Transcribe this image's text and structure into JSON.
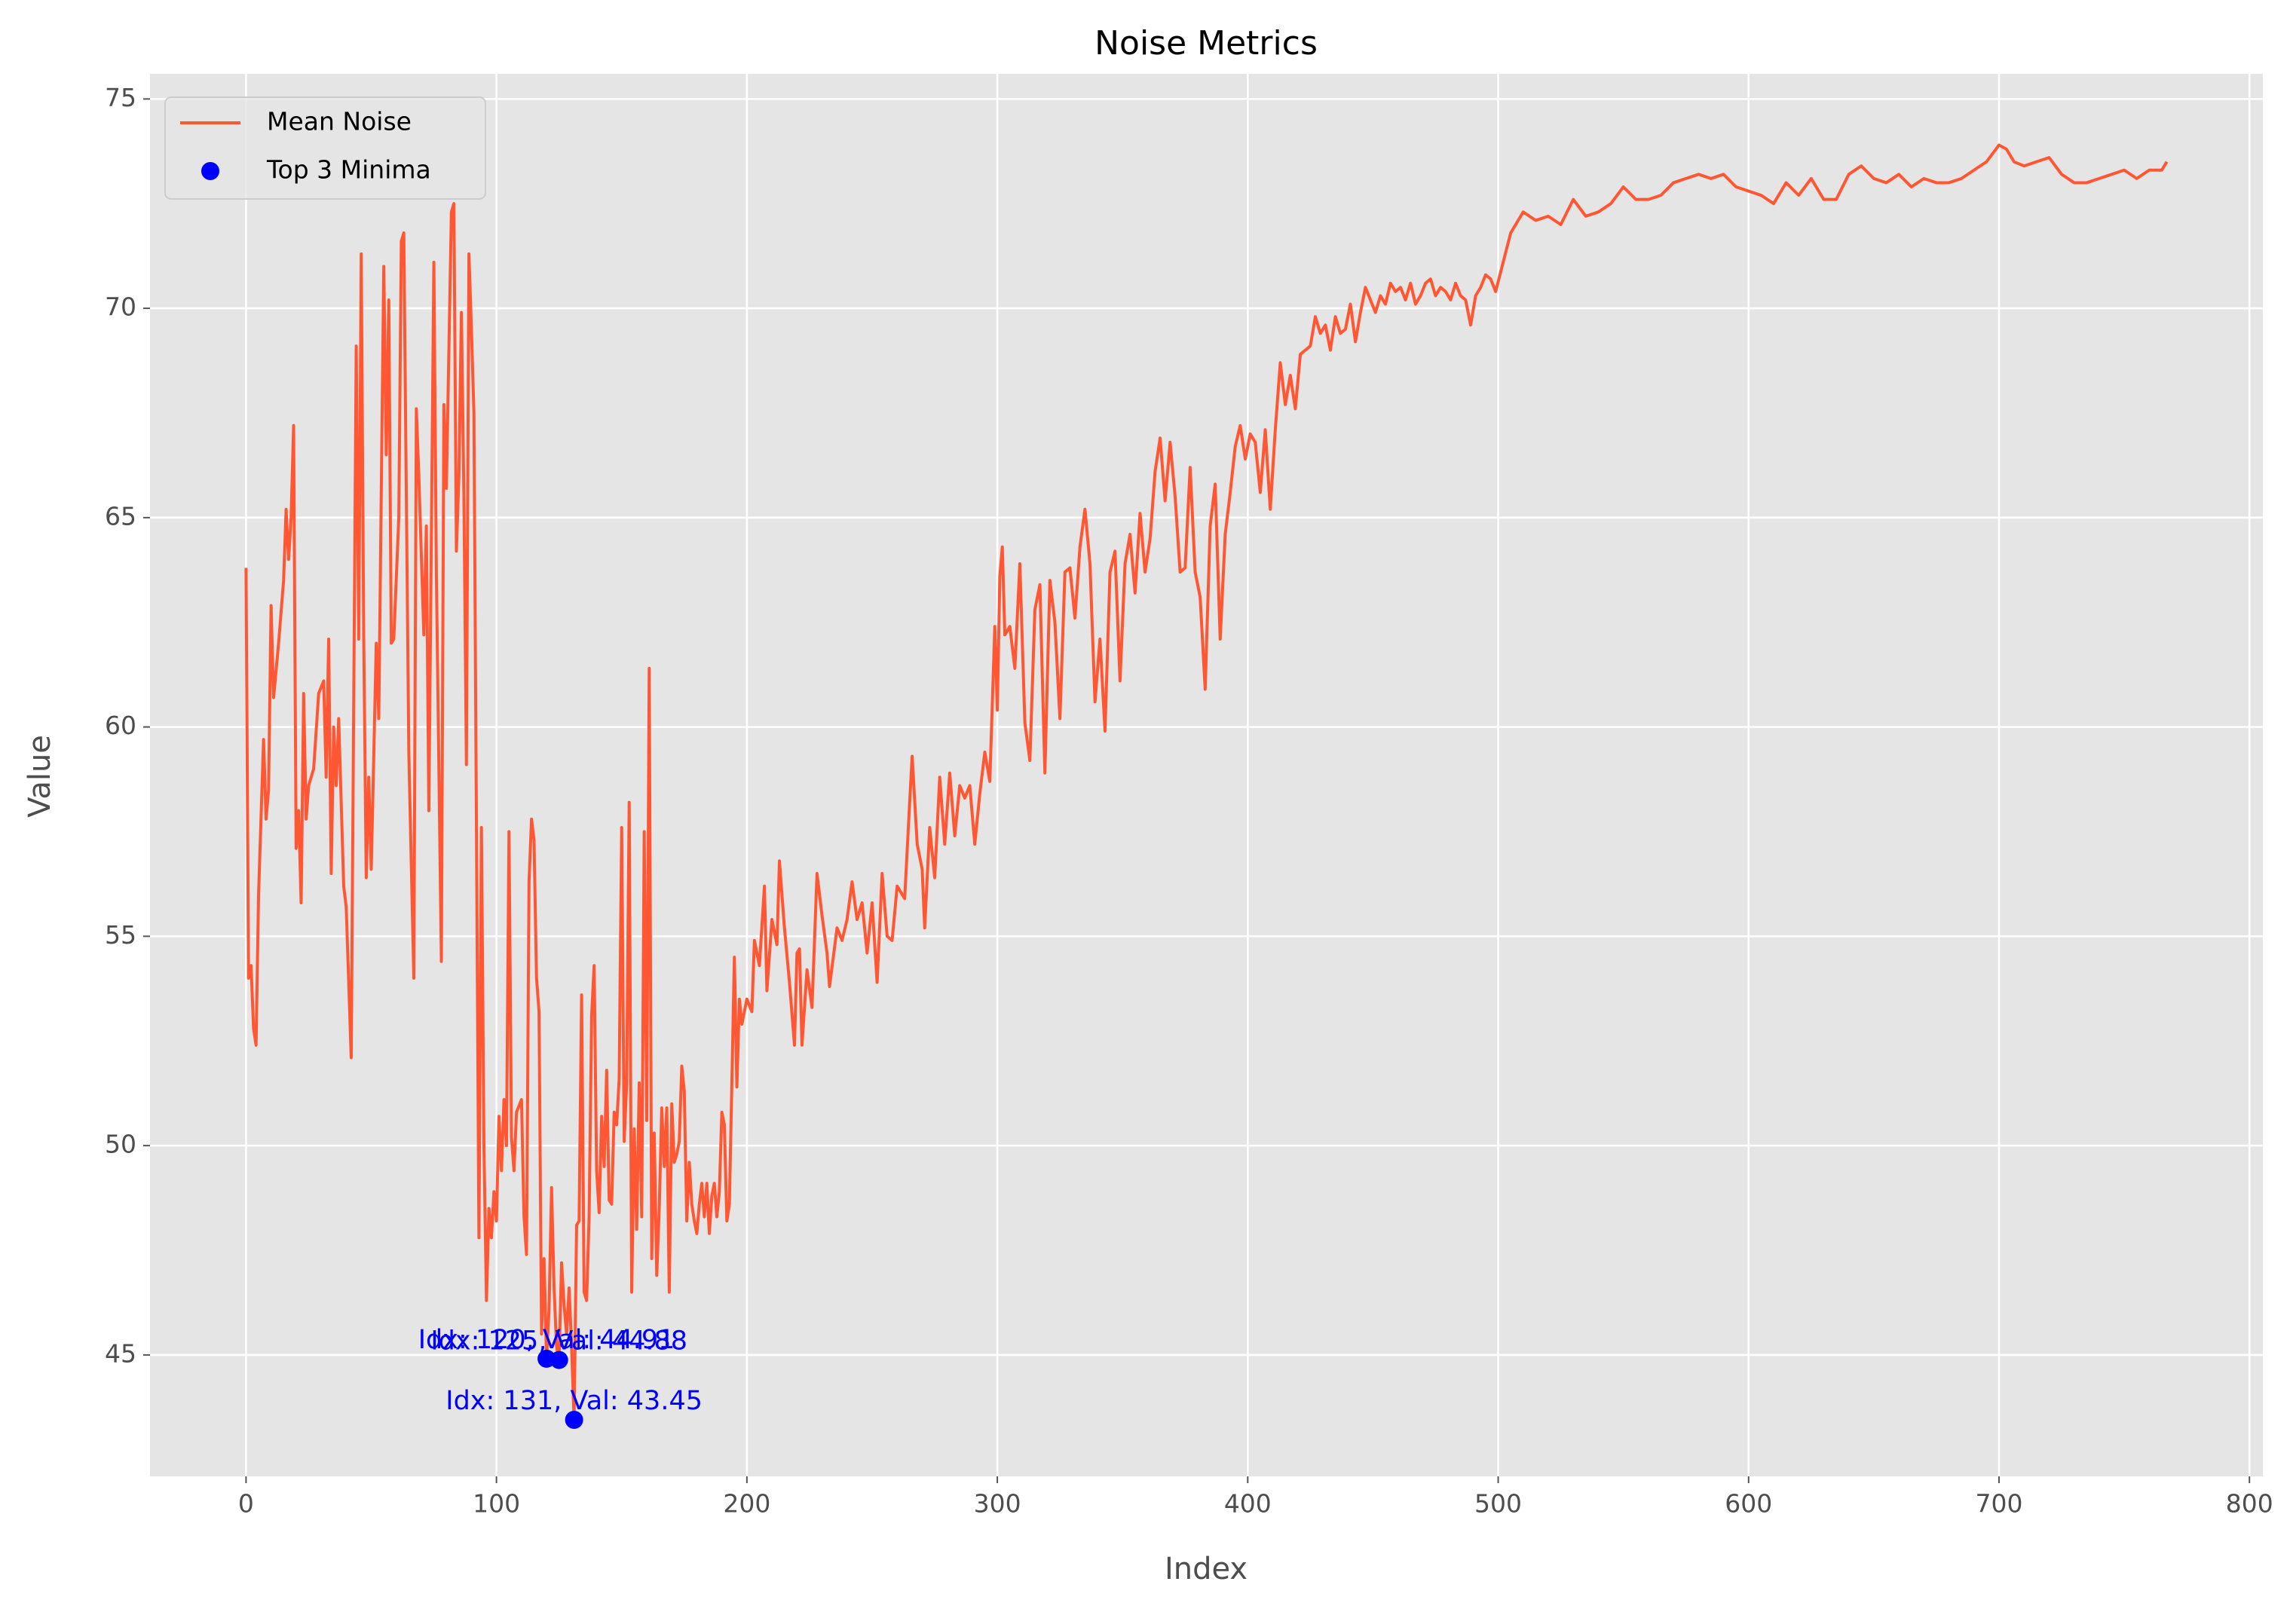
{
  "chart_data": {
    "type": "line",
    "title": "Noise Metrics",
    "xlabel": "Index",
    "ylabel": "Value",
    "x": [
      0,
      1,
      2,
      3,
      4,
      5,
      7,
      8,
      9,
      10,
      11,
      13,
      15,
      16,
      17,
      18,
      19,
      20,
      21,
      22,
      23,
      24,
      25,
      27,
      29,
      31,
      32,
      33,
      34,
      35,
      36,
      37,
      39,
      40,
      42,
      44,
      45,
      46,
      47,
      48,
      49,
      50,
      52,
      53,
      55,
      56,
      57,
      58,
      59,
      61,
      62,
      63,
      65,
      67,
      68,
      69,
      71,
      72,
      73,
      75,
      76,
      78,
      79,
      80,
      82,
      83,
      84,
      85,
      86,
      87,
      88,
      89,
      90,
      91,
      93,
      94,
      95,
      96,
      97,
      98,
      99,
      100,
      101,
      102,
      103,
      104,
      105,
      106,
      107,
      108,
      110,
      111,
      112,
      113,
      114,
      115,
      116,
      117,
      118,
      119,
      120,
      121,
      122,
      123,
      124,
      125,
      126,
      127,
      128,
      129,
      130,
      131,
      132,
      133,
      134,
      135,
      136,
      137,
      138,
      139,
      140,
      141,
      142,
      143,
      144,
      145,
      146,
      147,
      148,
      149,
      150,
      151,
      152,
      153,
      154,
      155,
      156,
      157,
      158,
      159,
      160,
      161,
      162,
      163,
      164,
      165,
      166,
      167,
      168,
      169,
      170,
      171,
      172,
      173,
      174,
      175,
      176,
      177,
      178,
      179,
      180,
      181,
      182,
      183,
      184,
      185,
      186,
      187,
      188,
      189,
      190,
      191,
      192,
      193,
      194,
      195,
      196,
      197,
      198,
      200,
      202,
      203,
      205,
      207,
      208,
      210,
      212,
      213,
      215,
      217,
      219,
      220,
      221,
      222,
      224,
      226,
      228,
      230,
      232,
      233,
      236,
      238,
      240,
      242,
      244,
      246,
      248,
      250,
      252,
      254,
      256,
      258,
      260,
      263,
      265,
      266,
      268,
      270,
      271,
      273,
      275,
      277,
      279,
      281,
      283,
      285,
      287,
      289,
      291,
      293,
      295,
      297,
      299,
      300,
      301,
      302,
      303,
      305,
      307,
      309,
      311,
      313,
      315,
      317,
      319,
      321,
      323,
      325,
      327,
      329,
      331,
      333,
      335,
      337,
      339,
      341,
      343,
      345,
      347,
      349,
      351,
      353,
      355,
      357,
      359,
      361,
      363,
      365,
      367,
      369,
      371,
      373,
      375,
      377,
      379,
      381,
      383,
      385,
      387,
      389,
      391,
      393,
      395,
      397,
      399,
      401,
      403,
      405,
      407,
      409,
      411,
      413,
      415,
      417,
      419,
      421,
      423,
      425,
      427,
      429,
      431,
      433,
      435,
      437,
      439,
      441,
      443,
      445,
      447,
      449,
      451,
      453,
      455,
      457,
      459,
      461,
      463,
      465,
      467,
      469,
      471,
      473,
      475,
      477,
      479,
      481,
      483,
      485,
      487,
      489,
      491,
      493,
      495,
      497,
      499,
      505,
      510,
      515,
      520,
      525,
      530,
      535,
      540,
      545,
      550,
      555,
      560,
      565,
      570,
      575,
      580,
      585,
      590,
      595,
      600,
      605,
      610,
      615,
      620,
      625,
      630,
      635,
      640,
      645,
      650,
      655,
      660,
      665,
      670,
      675,
      680,
      685,
      690,
      695,
      700,
      703,
      706,
      710,
      715,
      720,
      725,
      730,
      735,
      740,
      745,
      750,
      755,
      760,
      765,
      767
    ],
    "series": [
      {
        "name": "Mean Noise",
        "color": "#FF5733",
        "values": [
          63.8,
          54,
          54.3,
          52.8,
          52.4,
          56,
          59.7,
          57.8,
          58.5,
          62.9,
          60.7,
          62,
          63.5,
          65.2,
          64,
          65,
          67.2,
          57.1,
          58,
          55.8,
          60.8,
          57.8,
          58.6,
          59,
          60.8,
          61.1,
          58.8,
          62.1,
          56.5,
          60,
          58.6,
          60.2,
          56.2,
          55.7,
          52.1,
          69.1,
          62.1,
          71.3,
          62.1,
          56.4,
          58.8,
          56.6,
          62,
          60.2,
          71,
          66.5,
          70.2,
          62,
          62.1,
          65,
          71.6,
          71.8,
          59.4,
          54,
          67.6,
          66,
          62.2,
          64.8,
          58,
          71.1,
          63.7,
          54.4,
          67.7,
          65.7,
          72.3,
          72.5,
          64.2,
          66,
          69.9,
          65.5,
          59.1,
          71.3,
          69.5,
          67.5,
          47.8,
          57.6,
          50,
          46.3,
          48.5,
          47.8,
          48.9,
          48.2,
          50.7,
          49.4,
          51.1,
          50,
          57.5,
          50.2,
          49.4,
          50.8,
          51.1,
          48.3,
          47.4,
          56.3,
          57.8,
          57.3,
          54,
          53.2,
          45.5,
          47.3,
          44.91,
          46.1,
          49,
          46.6,
          45.2,
          44.88,
          47.2,
          46.2,
          45.5,
          46.6,
          45.2,
          43.45,
          48.1,
          48.2,
          53.6,
          46.5,
          46.3,
          48.3,
          53.1,
          54.3,
          49.4,
          48.4,
          50.7,
          49.5,
          51.8,
          48.7,
          48.6,
          50.8,
          50.5,
          51.6,
          57.6,
          50.1,
          51.5,
          58.2,
          46.5,
          50.4,
          48,
          51.5,
          48.3,
          57.5,
          50.6,
          61.4,
          47.3,
          50.3,
          46.9,
          48.5,
          50.9,
          49.5,
          50.9,
          46.5,
          51,
          49.6,
          49.8,
          50.1,
          51.9,
          51.3,
          48.2,
          49.6,
          48.6,
          48.2,
          47.9,
          48.6,
          49.1,
          48.3,
          49.1,
          47.9,
          48.8,
          49.1,
          48.3,
          48.9,
          50.8,
          50.5,
          48.2,
          48.6,
          51.5,
          54.5,
          51.4,
          53.5,
          52.9,
          53.5,
          53.2,
          54.9,
          54.3,
          56.2,
          53.7,
          55.4,
          54.8,
          56.8,
          55.2,
          53.9,
          52.4,
          54.6,
          54.7,
          52.4,
          54.2,
          53.3,
          56.5,
          55.5,
          54.6,
          53.8,
          55.2,
          54.9,
          55.4,
          56.3,
          55.4,
          55.8,
          54.6,
          55.8,
          53.9,
          56.5,
          55,
          54.9,
          56.2,
          55.9,
          58.2,
          59.3,
          57.2,
          56.6,
          55.2,
          57.6,
          56.4,
          58.8,
          57.2,
          58.9,
          57.4,
          58.6,
          58.3,
          58.6,
          57.2,
          58.4,
          59.4,
          58.7,
          62.4,
          60.4,
          63.6,
          64.3,
          62.2,
          62.4,
          61.4,
          63.9,
          60.1,
          59.2,
          62.8,
          63.4,
          58.9,
          63.5,
          62.5,
          60.2,
          63.7,
          63.8,
          62.6,
          64.3,
          65.2,
          63.9,
          60.6,
          62.1,
          59.9,
          63.7,
          64.2,
          61.1,
          63.9,
          64.6,
          63.2,
          65.1,
          63.7,
          64.5,
          66.1,
          66.9,
          65.4,
          66.8,
          65.5,
          63.7,
          63.8,
          66.2,
          63.7,
          63.1,
          60.9,
          64.8,
          65.8,
          62.1,
          64.6,
          65.6,
          66.7,
          67.2,
          66.4,
          67,
          66.8,
          65.6,
          67.1,
          65.2,
          67.1,
          68.7,
          67.7,
          68.4,
          67.6,
          68.9,
          69,
          69.1,
          69.8,
          69.4,
          69.6,
          69,
          69.8,
          69.4,
          69.5,
          70.1,
          69.2,
          69.9,
          70.5,
          70.2,
          69.9,
          70.3,
          70.1,
          70.6,
          70.4,
          70.5,
          70.2,
          70.6,
          70.1,
          70.3,
          70.6,
          70.7,
          70.3,
          70.5,
          70.4,
          70.2,
          70.6,
          70.3,
          70.2,
          69.6,
          70.3,
          70.5,
          70.8,
          70.7,
          70.4,
          71.8,
          72.3,
          72.1,
          72.2,
          72,
          72.6,
          72.2,
          72.3,
          72.5,
          72.9,
          72.6,
          72.6,
          72.7,
          73,
          73.1,
          73.2,
          73.1,
          73.2,
          72.9,
          72.8,
          72.7,
          72.5,
          73,
          72.7,
          73.1,
          72.6,
          72.6,
          73.2,
          73.4,
          73.1,
          73,
          73.2,
          72.9,
          73.1,
          73,
          73,
          73.1,
          73.3,
          73.5,
          73.9,
          73.8,
          73.5,
          73.4,
          73.5,
          73.6,
          73.2,
          73,
          73,
          73.1,
          73.2,
          73.3,
          73.1,
          73.3,
          73.3,
          73.5
        ]
      },
      {
        "name": "Top 3 Minima",
        "type": "scatter",
        "color": "#0000FF",
        "x": [
          120,
          125,
          131
        ],
        "values": [
          44.91,
          44.88,
          43.45
        ]
      }
    ],
    "annotations": [
      "Idx: 120, Val: 44.91",
      "Idx: 125, Val: 44.88",
      "Idx: 131, Val: 43.45"
    ],
    "annotation_color": "#0000FF",
    "xlim": [
      -38.35,
      805.35
    ],
    "ylim": [
      42.1,
      75.6
    ],
    "xticks": [
      0,
      100,
      200,
      300,
      400,
      500,
      600,
      700,
      800
    ],
    "yticks": [
      45,
      50,
      55,
      60,
      65,
      70,
      75
    ],
    "grid": true,
    "legend": "upper left"
  }
}
